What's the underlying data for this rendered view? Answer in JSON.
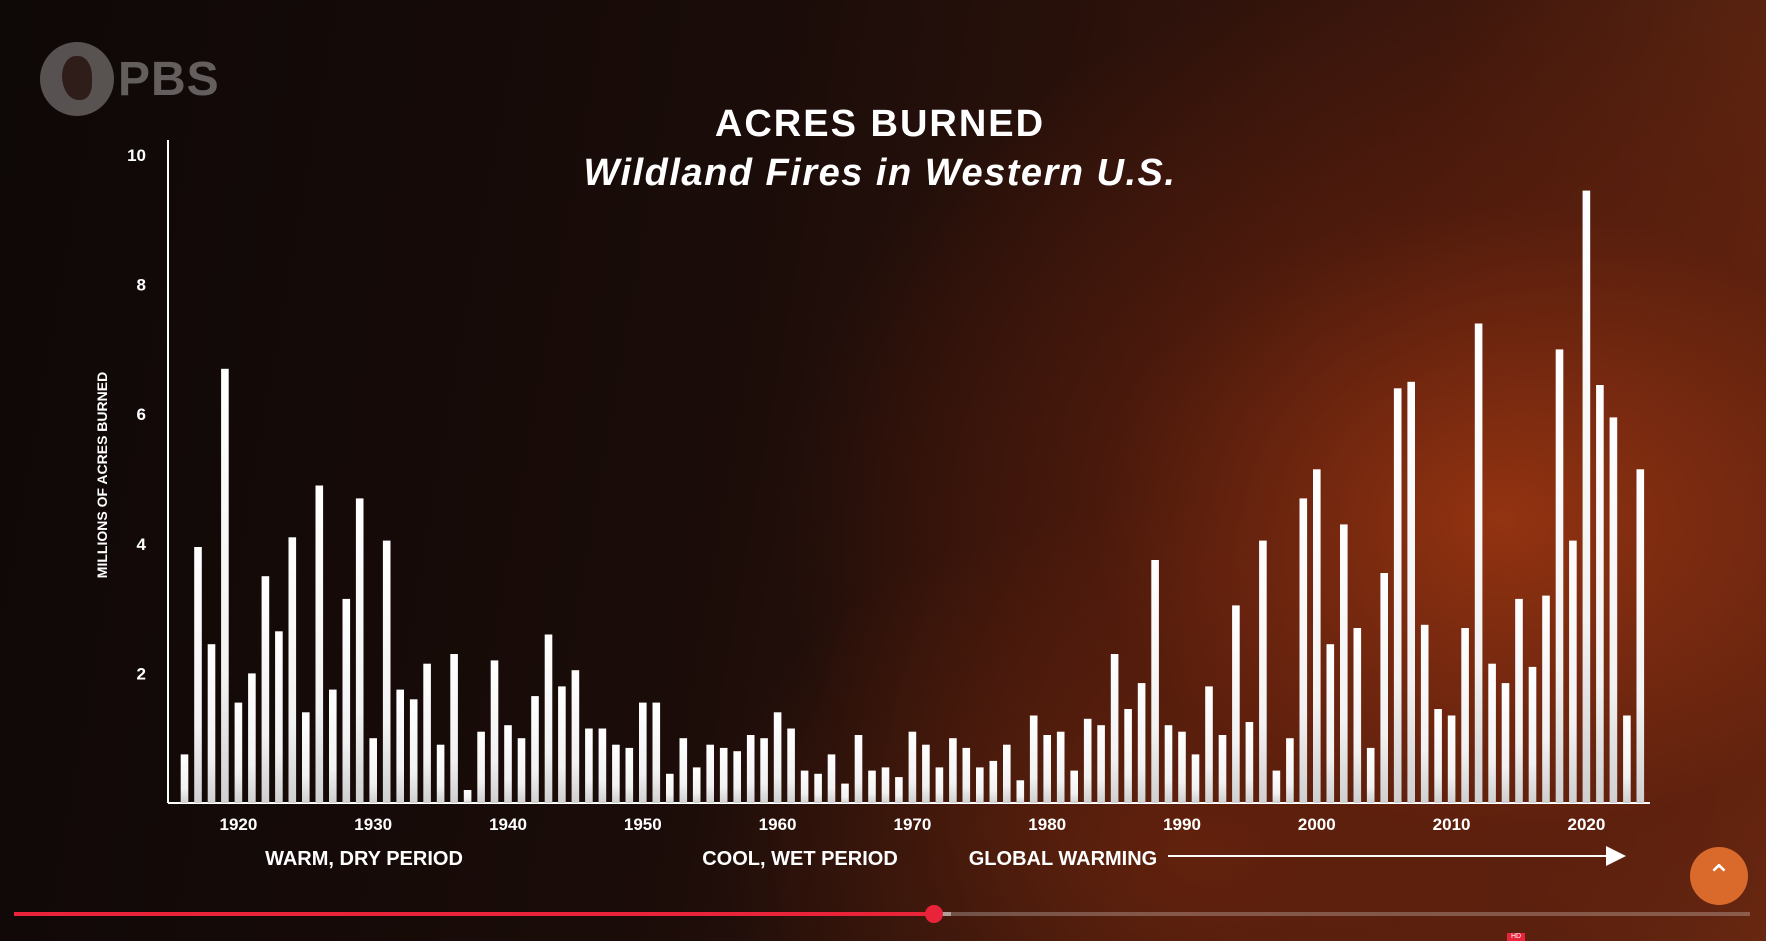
{
  "logo_text": "PBS",
  "chart_data": {
    "type": "bar",
    "title": "ACRES BURNED",
    "subtitle": "Wildland Fires in Western U.S.",
    "ylabel": "MILLIONS OF ACRES BURNED",
    "xlabel": "",
    "ylim": [
      0,
      10.2
    ],
    "yticks": [
      2,
      4,
      6,
      8,
      10
    ],
    "xticks": [
      1920,
      1930,
      1940,
      1950,
      1960,
      1970,
      1980,
      1990,
      2000,
      2010,
      2020
    ],
    "grid": false,
    "x": [
      1916,
      1917,
      1918,
      1919,
      1920,
      1921,
      1922,
      1923,
      1924,
      1925,
      1926,
      1927,
      1928,
      1929,
      1930,
      1931,
      1932,
      1933,
      1934,
      1935,
      1936,
      1937,
      1938,
      1939,
      1940,
      1941,
      1942,
      1943,
      1944,
      1945,
      1946,
      1947,
      1948,
      1949,
      1950,
      1951,
      1952,
      1953,
      1954,
      1955,
      1956,
      1957,
      1958,
      1959,
      1960,
      1961,
      1962,
      1963,
      1964,
      1965,
      1966,
      1967,
      1968,
      1969,
      1970,
      1971,
      1972,
      1973,
      1974,
      1975,
      1976,
      1977,
      1978,
      1979,
      1980,
      1981,
      1982,
      1983,
      1984,
      1985,
      1986,
      1987,
      1988,
      1989,
      1990,
      1991,
      1992,
      1993,
      1994,
      1995,
      1996,
      1997,
      1998,
      1999,
      2000,
      2001,
      2002,
      2003,
      2004,
      2005,
      2006,
      2007,
      2008,
      2009,
      2010,
      2011,
      2012,
      2013,
      2014,
      2015,
      2016,
      2017,
      2018,
      2019,
      2020,
      2021,
      2022,
      2023,
      2024
    ],
    "values": [
      0.75,
      3.95,
      2.45,
      6.7,
      1.55,
      2.0,
      3.5,
      2.65,
      4.1,
      1.4,
      4.9,
      1.75,
      3.15,
      4.7,
      1.0,
      4.05,
      1.75,
      1.6,
      2.15,
      0.9,
      2.3,
      0.2,
      1.1,
      2.2,
      1.2,
      1.0,
      1.65,
      2.6,
      1.8,
      2.05,
      1.15,
      1.15,
      0.9,
      0.85,
      1.55,
      1.55,
      0.45,
      1.0,
      0.55,
      0.9,
      0.85,
      0.8,
      1.05,
      1.0,
      1.4,
      1.15,
      0.5,
      0.45,
      0.75,
      0.3,
      1.05,
      0.5,
      0.55,
      0.4,
      1.1,
      0.9,
      0.55,
      1.0,
      0.85,
      0.55,
      0.65,
      0.9,
      0.35,
      1.35,
      1.05,
      1.1,
      0.5,
      1.3,
      1.2,
      2.3,
      1.45,
      1.85,
      3.75,
      1.2,
      1.1,
      0.75,
      1.8,
      1.05,
      3.05,
      1.25,
      4.05,
      0.5,
      1.0,
      4.7,
      5.15,
      2.45,
      4.3,
      2.7,
      0.85,
      3.55,
      6.4,
      6.5,
      2.75,
      1.45,
      1.35,
      2.7,
      7.4,
      2.15,
      1.85,
      3.15,
      2.1,
      3.2,
      7.0,
      4.05,
      9.45,
      6.45,
      5.95,
      1.35,
      5.15
    ]
  },
  "annotations": {
    "warm": "WARM, DRY PERIOD",
    "cool": "COOL, WET PERIOD",
    "global": "GLOBAL WARMING"
  },
  "player": {
    "progress": 0.53,
    "buffered": 0.54,
    "corner_icon": "up-arrow-icon",
    "hd_badge": "HD"
  },
  "colors": {
    "bars": "#ffffff",
    "accent": "#e8233a",
    "button": "#d96a2c"
  }
}
